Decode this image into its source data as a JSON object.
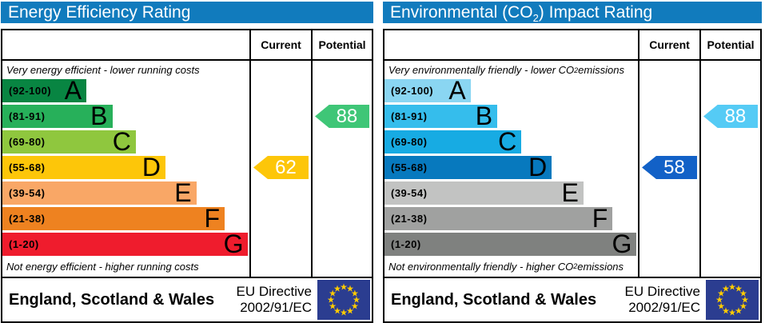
{
  "chart_data": [
    {
      "type": "bar",
      "title": "Energy Efficiency Rating",
      "categories": [
        "A (92-100)",
        "B (81-91)",
        "C (69-80)",
        "D (55-68)",
        "E (39-54)",
        "F (21-38)",
        "G (1-20)"
      ],
      "band_colors": [
        "#088542",
        "#27B05A",
        "#8FC73E",
        "#FDC609",
        "#F9A766",
        "#EE8220",
        "#EF1C2D"
      ],
      "current_value": 62,
      "current_band": "D",
      "potential_value": 88,
      "potential_band": "B",
      "top_note": "Very energy efficient - lower running costs",
      "bottom_note": "Not energy efficient - higher running costs",
      "xlim": [
        1,
        100
      ]
    },
    {
      "type": "bar",
      "title": "Environmental (CO2) Impact Rating",
      "categories": [
        "A (92-100)",
        "B (81-91)",
        "C (69-80)",
        "D (55-68)",
        "E (39-54)",
        "F (21-38)",
        "G (1-20)"
      ],
      "band_colors": [
        "#8AD6F2",
        "#35BDEC",
        "#17ABE3",
        "#0779BE",
        "#C2C3C2",
        "#A0A1A0",
        "#7F817F"
      ],
      "current_value": 58,
      "current_band": "D",
      "potential_value": 88,
      "potential_band": "B",
      "top_note": "Very environmentally friendly - lower CO2 emissions",
      "bottom_note": "Not environmentally friendly - higher CO2 emissions",
      "xlim": [
        1,
        100
      ]
    }
  ],
  "panels": [
    {
      "header_color": "#117BBD",
      "title": {
        "pre": "Energy Efficiency Rating",
        "sub": "",
        "post": ""
      },
      "columns": {
        "current": "Current",
        "potential": "Potential"
      },
      "top_caption": {
        "pre": "Very energy efficient - lower running costs",
        "sub": "",
        "post": ""
      },
      "bottom_caption": {
        "pre": "Not energy efficient - higher running costs",
        "sub": "",
        "post": ""
      },
      "bands": [
        {
          "range": "(92-100)",
          "letter": "A",
          "color": "#088542",
          "width_pct": 34
        },
        {
          "range": "(81-91)",
          "letter": "B",
          "color": "#27B05A",
          "width_pct": 44.5
        },
        {
          "range": "(69-80)",
          "letter": "C",
          "color": "#8FC73E",
          "width_pct": 54
        },
        {
          "range": "(55-68)",
          "letter": "D",
          "color": "#FDC609",
          "width_pct": 66
        },
        {
          "range": "(39-54)",
          "letter": "E",
          "color": "#F9A766",
          "width_pct": 78.5
        },
        {
          "range": "(21-38)",
          "letter": "F",
          "color": "#EE8220",
          "width_pct": 90
        },
        {
          "range": "(1-20)",
          "letter": "G",
          "color": "#EF1C2D",
          "width_pct": 99.5
        }
      ],
      "current": {
        "value": "62",
        "row_index": 3,
        "color": "#FDC609"
      },
      "potential": {
        "value": "88",
        "row_index": 1,
        "color": "#3FC677"
      },
      "footer": {
        "region": "England, Scotland & Wales",
        "directive_line1": "EU Directive",
        "directive_line2": "2002/91/EC"
      }
    },
    {
      "header_color": "#117BBD",
      "title": {
        "pre": "Environmental (CO",
        "sub": "2",
        "post": ") Impact Rating"
      },
      "columns": {
        "current": "Current",
        "potential": "Potential"
      },
      "top_caption": {
        "pre": "Very environmentally friendly - lower CO",
        "sub": "2",
        "post": " emissions"
      },
      "bottom_caption": {
        "pre": "Not environmentally friendly - higher CO",
        "sub": "2",
        "post": " emissions"
      },
      "bands": [
        {
          "range": "(92-100)",
          "letter": "A",
          "color": "#8AD6F2",
          "width_pct": 34
        },
        {
          "range": "(81-91)",
          "letter": "B",
          "color": "#35BDEC",
          "width_pct": 44.5
        },
        {
          "range": "(69-80)",
          "letter": "C",
          "color": "#17ABE3",
          "width_pct": 54
        },
        {
          "range": "(55-68)",
          "letter": "D",
          "color": "#0779BE",
          "width_pct": 66
        },
        {
          "range": "(39-54)",
          "letter": "E",
          "color": "#C2C3C2",
          "width_pct": 78.5
        },
        {
          "range": "(21-38)",
          "letter": "F",
          "color": "#A0A1A0",
          "width_pct": 90
        },
        {
          "range": "(1-20)",
          "letter": "G",
          "color": "#7F817F",
          "width_pct": 99.5
        }
      ],
      "current": {
        "value": "58",
        "row_index": 3,
        "color": "#1261C7"
      },
      "potential": {
        "value": "88",
        "row_index": 1,
        "color": "#55CBF5"
      },
      "footer": {
        "region": "England, Scotland & Wales",
        "directive_line1": "EU Directive",
        "directive_line2": "2002/91/EC"
      }
    }
  ],
  "flag": {
    "background": "#2B3D90",
    "star_color": "#FFCC00"
  }
}
